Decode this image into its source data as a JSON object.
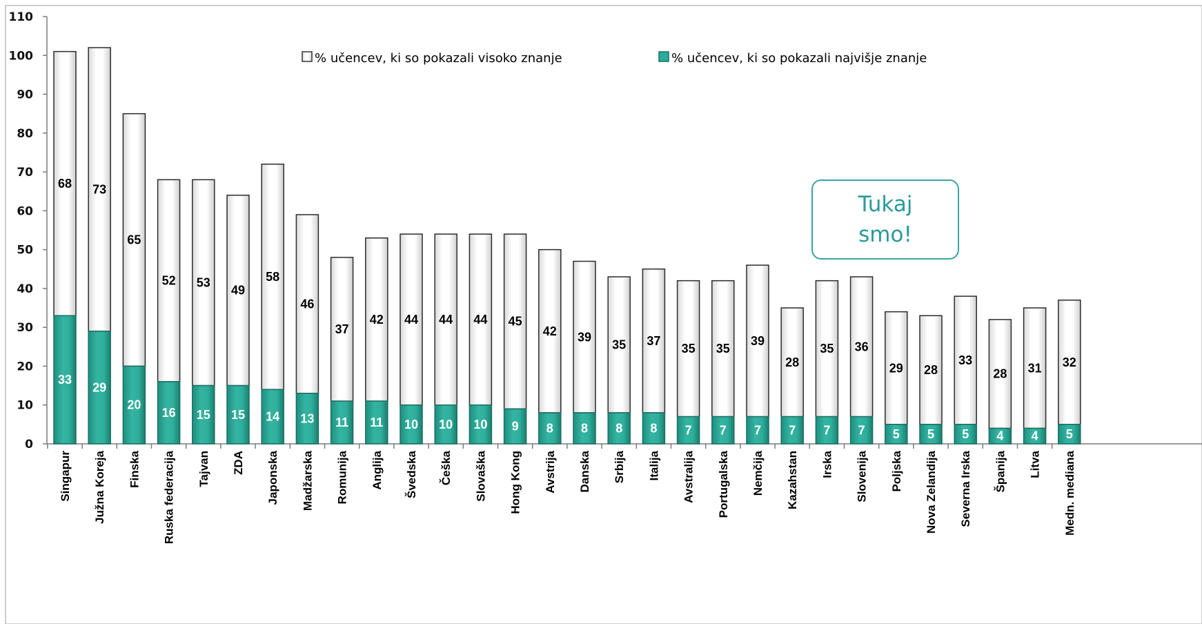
{
  "chart_data": {
    "type": "bar",
    "stacked": true,
    "ylim": [
      0,
      110
    ],
    "yticks": [
      0,
      10,
      20,
      30,
      40,
      50,
      60,
      70,
      80,
      90,
      100,
      110
    ],
    "grid": false,
    "legend_position": "top",
    "categories": [
      "Singapur",
      "Južna Koreja",
      "Finska",
      "Ruska federacija",
      "Tajvan",
      "ZDA",
      "Japonska",
      "Madžarska",
      "Romunija",
      "Anglija",
      "Švedska",
      "Češka",
      "Slovaška",
      "Hong Kong",
      "Avstrija",
      "Danska",
      "Srbija",
      "Italija",
      "Avstralija",
      "Portugalska",
      "Nemčija",
      "Kazahstan",
      "Irska",
      "Slovenija",
      "Poljska",
      "Nova Zelandija",
      "Severna Irska",
      "Španija",
      "Litva",
      "Medn. mediana"
    ],
    "series": [
      {
        "name": "% učencev, ki so pokazali najvišje znanje",
        "color": "#2bab9a",
        "values": [
          33,
          29,
          20,
          16,
          15,
          15,
          14,
          13,
          11,
          11,
          10,
          10,
          10,
          9,
          8,
          8,
          8,
          8,
          7,
          7,
          7,
          7,
          7,
          7,
          5,
          5,
          5,
          4,
          4,
          5
        ]
      },
      {
        "name": "% učencev, ki so pokazali visoko znanje",
        "color": "#ffffff",
        "values": [
          68,
          73,
          65,
          52,
          53,
          49,
          58,
          46,
          37,
          42,
          44,
          44,
          44,
          45,
          42,
          39,
          35,
          37,
          35,
          35,
          39,
          28,
          35,
          36,
          29,
          28,
          33,
          28,
          31,
          32
        ]
      }
    ],
    "annotation": "Tukaj\nsmo!",
    "annotation_category": "Slovenija"
  },
  "legend": {
    "items": [
      {
        "label": "% učencev, ki so pokazali visoko znanje",
        "color": "#ffffff"
      },
      {
        "label": "% učencev, ki so pokazali najvišje znanje",
        "color": "#2bab9a"
      }
    ]
  },
  "callout": {
    "line1": "Tukaj",
    "line2": "smo!"
  }
}
